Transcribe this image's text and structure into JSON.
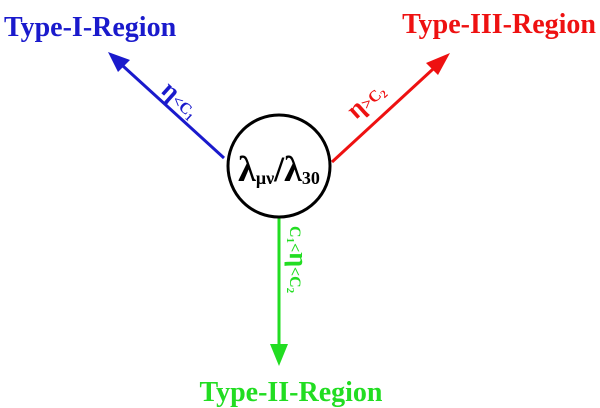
{
  "center": {
    "lambda1_symbol": "λ",
    "lambda1_sub": "μν",
    "slash": "/",
    "lambda2_symbol": "λ",
    "lambda2_sub": "30"
  },
  "regions": {
    "type1": {
      "label": "Type-I-Region",
      "color": "#1a1acc",
      "cond_eta": "η",
      "cond_rel": "<C",
      "cond_sub": "1"
    },
    "type2": {
      "label": "Type-II-Region",
      "color": "#22dd22",
      "cond_c1": "C",
      "cond_c1_sub": "1",
      "cond_lt1": "<",
      "cond_eta": "η",
      "cond_lt2": "<C",
      "cond_c2_sub": "2"
    },
    "type3": {
      "label": "Type-III-Region",
      "color": "#ee1111",
      "cond_eta": "η",
      "cond_rel": ">C",
      "cond_sub": "2"
    }
  }
}
